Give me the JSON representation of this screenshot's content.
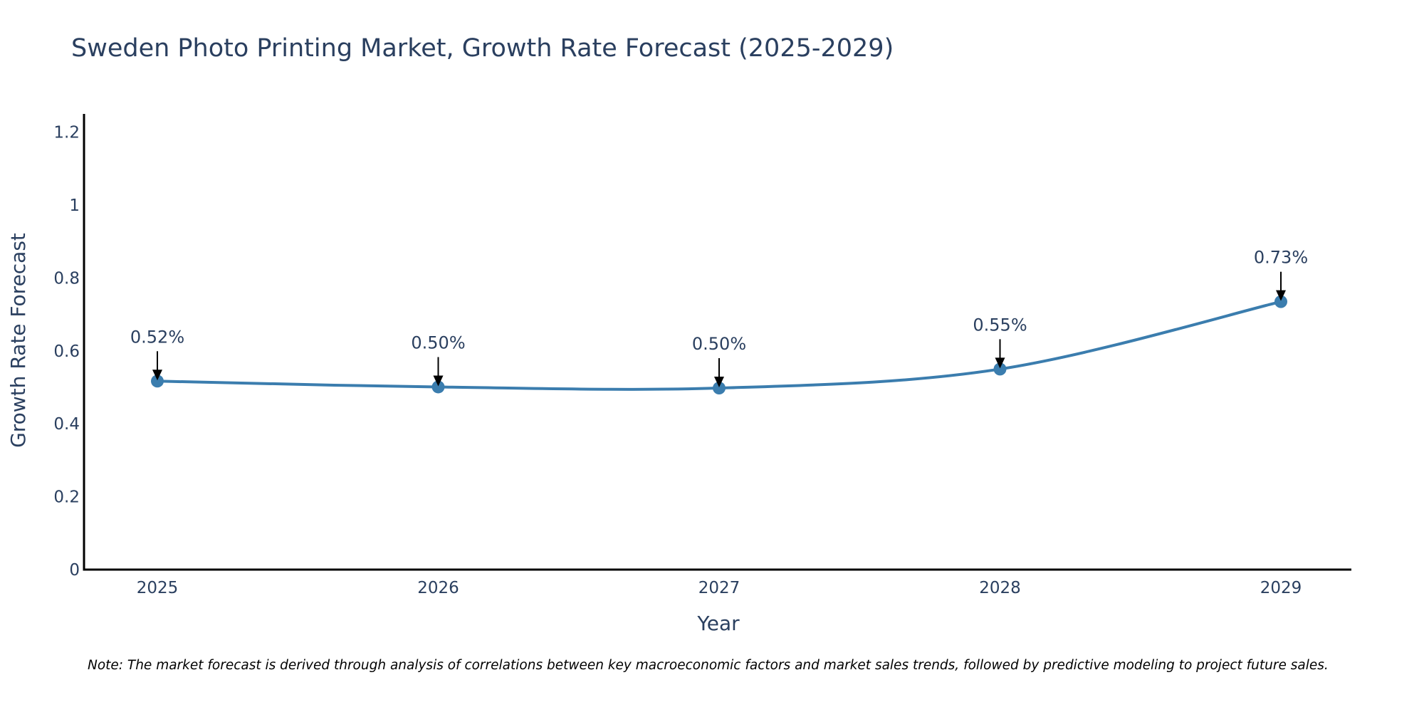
{
  "chart_data": {
    "type": "line",
    "title": "Sweden Photo Printing Market, Growth Rate Forecast (2025-2029)",
    "xlabel": "Year",
    "ylabel": "Growth Rate Forecast",
    "categories": [
      "2025",
      "2026",
      "2027",
      "2028",
      "2029"
    ],
    "series": [
      {
        "name": "Growth Rate Forecast",
        "values": [
          0.517,
          0.501,
          0.498,
          0.55,
          0.735
        ]
      }
    ],
    "data_labels": [
      "0.52%",
      "0.50%",
      "0.50%",
      "0.55%",
      "0.73%"
    ],
    "ylim": [
      0,
      1.25
    ],
    "yticks": [
      0,
      0.2,
      0.4,
      0.6,
      0.8,
      1,
      1.2
    ],
    "ytick_labels": [
      "0",
      "0.2",
      "0.4",
      "0.6",
      "0.8",
      "1",
      "1.2"
    ],
    "grid": false,
    "line_color": "#3b7dae",
    "arrow_color": "#000000",
    "note": "Note: The market forecast is derived through analysis of correlations between key macroeconomic factors and market sales trends, followed by predictive modeling to project future sales."
  }
}
